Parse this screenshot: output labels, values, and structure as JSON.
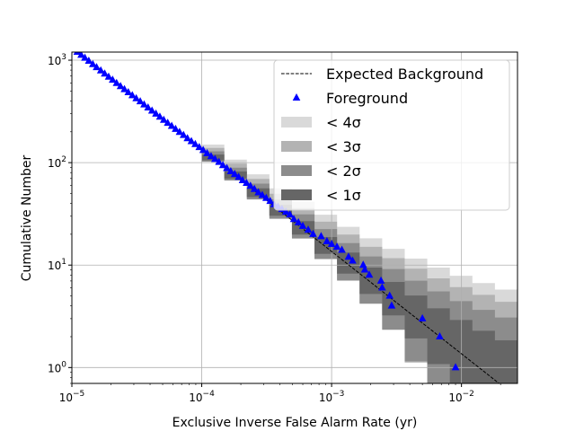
{
  "chart_data": {
    "type": "scatter",
    "title": "",
    "xlabel": "Exclusive Inverse False Alarm Rate (yr)",
    "ylabel": "Cumulative Number",
    "xscale": "log",
    "yscale": "log",
    "xlim": [
      1e-05,
      0.027
    ],
    "ylim": [
      0.7,
      1200
    ],
    "grid": true,
    "legend_position": "top-right",
    "x_ticks": [
      {
        "value": 1e-05,
        "base": "10",
        "exp": "−5"
      },
      {
        "value": 0.0001,
        "base": "10",
        "exp": "−4"
      },
      {
        "value": 0.001,
        "base": "10",
        "exp": "−3"
      },
      {
        "value": 0.01,
        "base": "10",
        "exp": "−2"
      }
    ],
    "y_ticks": [
      {
        "value": 1,
        "base": "10",
        "exp": "0"
      },
      {
        "value": 10,
        "base": "10",
        "exp": "1"
      },
      {
        "value": 100,
        "base": "10",
        "exp": "2"
      },
      {
        "value": 1000,
        "base": "10",
        "exp": "3"
      }
    ],
    "legend": [
      {
        "label": "Expected Background",
        "kind": "dashed-line",
        "color": "#000000"
      },
      {
        "label": "Foreground",
        "kind": "triangle",
        "color": "#0000ff"
      },
      {
        "label": "< 4σ",
        "kind": "patch",
        "color": "#d9d9d9"
      },
      {
        "label": "< 3σ",
        "kind": "patch",
        "color": "#b3b3b3"
      },
      {
        "label": "< 2σ",
        "kind": "patch",
        "color": "#8c8c8c"
      },
      {
        "label": "< 1σ",
        "kind": "patch",
        "color": "#666666"
      }
    ],
    "expected_background": {
      "name": "Expected Background",
      "x": [
        1e-05,
        0.022
      ],
      "y": [
        1350,
        0.62
      ]
    },
    "bands": {
      "x_start": 0.0001,
      "x_end": 0.027,
      "levels": [
        {
          "sigma": 4,
          "color": "#d9d9d9",
          "low_factor": 0.0,
          "high_add": 3.5
        },
        {
          "sigma": 3,
          "color": "#b3b3b3",
          "low_factor": 0.45,
          "high_add": 2.5
        },
        {
          "sigma": 2,
          "color": "#8c8c8c",
          "low_factor": 0.8,
          "high_add": 1.6
        },
        {
          "sigma": 1,
          "color": "#666666",
          "low_factor": 1.0,
          "high_add": 0.8
        }
      ]
    },
    "series": [
      {
        "name": "Foreground",
        "marker": "triangle",
        "color": "#0000ff",
        "points": [
          [
            1.1e-05,
            1200
          ],
          [
            1.18e-05,
            1120
          ],
          [
            1.26e-05,
            1050
          ],
          [
            1.35e-05,
            980
          ],
          [
            1.45e-05,
            910
          ],
          [
            1.55e-05,
            850
          ],
          [
            1.67e-05,
            790
          ],
          [
            1.79e-05,
            735
          ],
          [
            1.92e-05,
            685
          ],
          [
            2.06e-05,
            640
          ],
          [
            2.21e-05,
            595
          ],
          [
            2.37e-05,
            555
          ],
          [
            2.54e-05,
            518
          ],
          [
            2.72e-05,
            484
          ],
          [
            2.92e-05,
            452
          ],
          [
            3.13e-05,
            422
          ],
          [
            3.36e-05,
            394
          ],
          [
            3.6e-05,
            368
          ],
          [
            3.86e-05,
            343
          ],
          [
            4.14e-05,
            320
          ],
          [
            4.44e-05,
            299
          ],
          [
            4.76e-05,
            279
          ],
          [
            5.1e-05,
            260
          ],
          [
            5.47e-05,
            243
          ],
          [
            5.87e-05,
            227
          ],
          [
            6.29e-05,
            212
          ],
          [
            6.75e-05,
            198
          ],
          [
            7.24e-05,
            185
          ],
          [
            7.76e-05,
            172
          ],
          [
            8.32e-05,
            161
          ],
          [
            8.92e-05,
            151
          ],
          [
            9.57e-05,
            141
          ],
          [
            0.0001026,
            132
          ],
          [
            0.00011,
            123
          ],
          [
            0.000118,
            115
          ],
          [
            0.0001265,
            108
          ],
          [
            0.0001357,
            101
          ],
          [
            0.0001455,
            94
          ],
          [
            0.000156,
            88
          ],
          [
            0.0001673,
            82
          ],
          [
            0.0001794,
            77
          ],
          [
            0.0001924,
            72
          ],
          [
            0.0002063,
            67
          ],
          [
            0.0002212,
            63
          ],
          [
            0.0002372,
            59
          ],
          [
            0.0002544,
            55
          ],
          [
            0.0002728,
            51
          ],
          [
            0.0002925,
            48
          ],
          [
            0.0003137,
            45
          ],
          [
            0.0003364,
            42
          ],
          [
            0.0003607,
            39
          ],
          [
            0.0003868,
            37
          ],
          [
            0.0004148,
            35
          ],
          [
            0.0004448,
            33
          ],
          [
            0.000477,
            31
          ],
          [
            0.0005115,
            28
          ],
          [
            0.000555,
            26
          ],
          [
            0.0006,
            24
          ],
          [
            0.00066,
            22
          ],
          [
            0.00072,
            20
          ],
          [
            0.00083,
            19
          ],
          [
            0.00092,
            17
          ],
          [
            0.001,
            16
          ],
          [
            0.0011,
            15
          ],
          [
            0.0012,
            14
          ],
          [
            0.00135,
            12
          ],
          [
            0.00145,
            11
          ],
          [
            0.00175,
            10
          ],
          [
            0.0018,
            9
          ],
          [
            0.00195,
            8
          ],
          [
            0.0024,
            7
          ],
          [
            0.00245,
            6
          ],
          [
            0.0028,
            5
          ],
          [
            0.0029,
            4
          ],
          [
            0.005,
            3
          ],
          [
            0.0068,
            2
          ],
          [
            0.009,
            1
          ]
        ]
      }
    ]
  }
}
